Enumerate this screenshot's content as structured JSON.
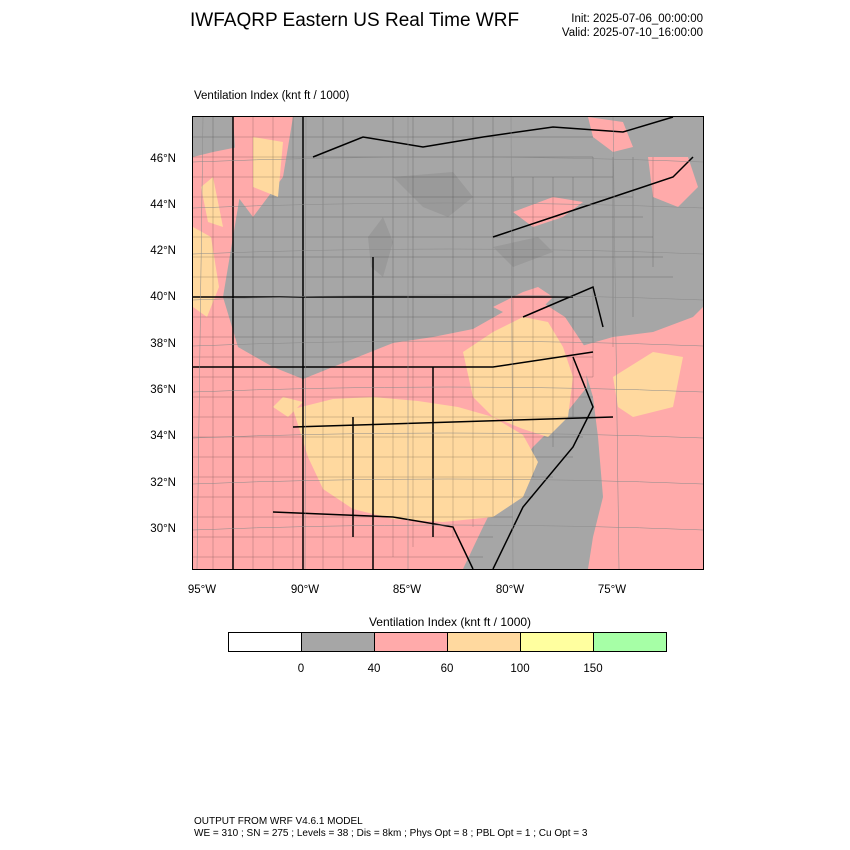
{
  "header": {
    "title": "IWFAQRP Eastern US Real Time WRF",
    "init": "Init: 2025-07-06_00:00:00",
    "valid": "Valid: 2025-07-10_16:00:00"
  },
  "field": {
    "label": "Ventilation Index   (knt ft / 1000)"
  },
  "axes": {
    "lat_labels": [
      "46°N",
      "44°N",
      "42°N",
      "40°N",
      "38°N",
      "36°N",
      "34°N",
      "32°N",
      "30°N"
    ],
    "lon_labels": [
      "95°W",
      "90°W",
      "85°W",
      "80°W",
      "75°W"
    ]
  },
  "legend": {
    "title": "Ventilation Index  (knt ft / 1000)",
    "colors": [
      "#ffffff",
      "#a6a6a6",
      "#ffaaaa",
      "#ffd99f",
      "#ffff9f",
      "#a6ffa6"
    ],
    "labels": [
      "0",
      "40",
      "60",
      "100",
      "150"
    ]
  },
  "footer": {
    "line1": "OUTPUT FROM WRF V4.6.1 MODEL",
    "line2": "WE = 310 ; SN = 275 ; Levels = 38 ; Dis = 8km ; Phys Opt = 8 ; PBL Opt = 1 ; Cu Opt = 3"
  }
}
